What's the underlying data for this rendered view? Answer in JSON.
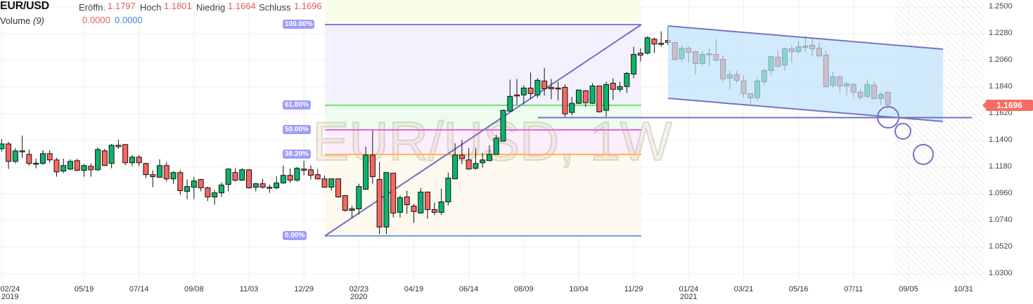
{
  "header": {
    "symbol": "EUR/USD",
    "open_label": "Eröffn.",
    "open_value": "1.1797",
    "high_label": "Hoch",
    "high_value": "1.1801",
    "low_label": "Niedrig",
    "low_value": "1.1664",
    "close_label": "Schluss",
    "close_value": "1.1696",
    "volume_label": "Volume",
    "volume_param": "(9)",
    "volume_value_1": "0.0000",
    "volume_value_2": "0.0000"
  },
  "watermark": "EUR/USD, 1W",
  "last_price": "1.1696",
  "fib_labels": [
    "100.00%",
    "61.80%",
    "50.00%",
    "38.20%",
    "0.00%"
  ],
  "colors": {
    "up": "#0bb56b",
    "down": "#f8665f",
    "channel": "#bfe2fb",
    "last_price": "#f86b63"
  },
  "chart_data": {
    "type": "candlestick",
    "interval": "1W",
    "ylim": [
      1.03,
      1.25
    ],
    "y_ticks": [
      "1.2500",
      "1.2280",
      "1.2060",
      "1.1840",
      "1.1620",
      "1.1400",
      "1.1180",
      "1.0960",
      "1.0740",
      "1.0520",
      "1.0300"
    ],
    "x_ticks": [
      {
        "label": "02/24",
        "year": "2019"
      },
      {
        "label": "05/19"
      },
      {
        "label": "07/14"
      },
      {
        "label": "09/08"
      },
      {
        "label": "11/03"
      },
      {
        "label": "12/29"
      },
      {
        "label": "02/23",
        "year": "2020"
      },
      {
        "label": "04/19"
      },
      {
        "label": "06/14"
      },
      {
        "label": "08/09"
      },
      {
        "label": "10/04"
      },
      {
        "label": "11/29"
      },
      {
        "label": "01/24",
        "year": "2021"
      },
      {
        "label": "03/21"
      },
      {
        "label": "05/16"
      },
      {
        "label": "07/11"
      },
      {
        "label": "09/05"
      },
      {
        "label": "10/31"
      }
    ],
    "ohlc": [
      [
        1.1331,
        1.1412,
        1.1308,
        1.1371
      ],
      [
        1.1371,
        1.1389,
        1.1164,
        1.1227
      ],
      [
        1.1227,
        1.1337,
        1.121,
        1.1314
      ],
      [
        1.1314,
        1.1441,
        1.1256,
        1.1308
      ],
      [
        1.1285,
        1.1325,
        1.1193,
        1.121
      ],
      [
        1.121,
        1.125,
        1.117,
        1.1212
      ],
      [
        1.121,
        1.132,
        1.1199,
        1.1291
      ],
      [
        1.1291,
        1.132,
        1.1216,
        1.1239
      ],
      [
        1.1239,
        1.1256,
        1.1101,
        1.1141
      ],
      [
        1.1147,
        1.125,
        1.113,
        1.1193
      ],
      [
        1.1164,
        1.1245,
        1.1153,
        1.1227
      ],
      [
        1.1233,
        1.125,
        1.1147,
        1.1153
      ],
      [
        1.1153,
        1.1204,
        1.1101,
        1.1193
      ],
      [
        1.1187,
        1.121,
        1.1101,
        1.1158
      ],
      [
        1.1158,
        1.1343,
        1.1147,
        1.1325
      ],
      [
        1.1314,
        1.1331,
        1.119,
        1.1193
      ],
      [
        1.121,
        1.1371,
        1.117,
        1.136
      ],
      [
        1.136,
        1.1406,
        1.1331,
        1.1348
      ],
      [
        1.1366,
        1.137,
        1.1193,
        1.1216
      ],
      [
        1.1216,
        1.1279,
        1.1187,
        1.1262
      ],
      [
        1.1262,
        1.1279,
        1.1187,
        1.1216
      ],
      [
        1.121,
        1.1216,
        1.1089,
        1.1118
      ],
      [
        1.1118,
        1.1153,
        1.1014,
        1.1101
      ],
      [
        1.1095,
        1.1245,
        1.1093,
        1.1193
      ],
      [
        1.1193,
        1.1222,
        1.106,
        1.1083
      ],
      [
        1.1083,
        1.1147,
        1.1043,
        1.1135
      ],
      [
        1.1135,
        1.1158,
        1.0951,
        1.0986
      ],
      [
        1.098,
        1.1078,
        1.0916,
        1.102
      ],
      [
        1.1014,
        1.1101,
        1.0916,
        1.1066
      ],
      [
        1.1078,
        1.1083,
        1.098,
        1.1009
      ],
      [
        1.1009,
        1.102,
        1.0899,
        1.0934
      ],
      [
        1.0934,
        1.0991,
        1.087,
        1.0968
      ],
      [
        1.0968,
        1.1055,
        1.0934,
        1.1032
      ],
      [
        1.1037,
        1.117,
        1.098,
        1.1164
      ],
      [
        1.1135,
        1.117,
        1.106,
        1.1072
      ],
      [
        1.1072,
        1.117,
        1.1066,
        1.1158
      ],
      [
        1.1158,
        1.1164,
        1.1003,
        1.1009
      ],
      [
        1.1014,
        1.1049,
        1.098,
        1.1043
      ],
      [
        1.1043,
        1.1083,
        1.1003,
        1.1014
      ],
      [
        1.1014,
        1.1037,
        1.0968,
        1.1009
      ],
      [
        1.1009,
        1.1106,
        1.0997,
        1.1049
      ],
      [
        1.1049,
        1.1193,
        1.1043,
        1.1112
      ],
      [
        1.1112,
        1.117,
        1.1049,
        1.1072
      ],
      [
        1.1072,
        1.1181,
        1.106,
        1.117
      ],
      [
        1.1164,
        1.1233,
        1.1112,
        1.1153
      ],
      [
        1.1158,
        1.1193,
        1.1078,
        1.1112
      ],
      [
        1.1118,
        1.1164,
        1.1078,
        1.1083
      ],
      [
        1.1083,
        1.1112,
        1.1009,
        1.1014
      ],
      [
        1.1014,
        1.1085,
        1.0986,
        1.1083
      ],
      [
        1.1083,
        1.1085,
        1.0928,
        1.0934
      ],
      [
        1.0945,
        1.0951,
        1.0813,
        1.0824
      ],
      [
        1.0824,
        1.0859,
        1.0761,
        1.0836
      ],
      [
        1.0836,
        1.1043,
        1.079,
        1.102
      ],
      [
        1.0997,
        1.1348,
        1.0997,
        1.1279
      ],
      [
        1.1279,
        1.1481,
        1.1043,
        1.1101
      ],
      [
        1.1078,
        1.1222,
        1.0628,
        1.0686
      ],
      [
        1.0686,
        1.1135,
        1.0628,
        1.1135
      ],
      [
        1.113,
        1.113,
        1.0766,
        1.0801
      ],
      [
        1.0807,
        1.0945,
        1.0766,
        1.0928
      ],
      [
        1.0934,
        1.0986,
        1.0795,
        1.087
      ],
      [
        1.0859,
        1.0876,
        1.072,
        1.0813
      ],
      [
        1.0801,
        1.1009,
        1.0801,
        1.0974
      ],
      [
        1.0974,
        1.0974,
        1.0755,
        1.083
      ],
      [
        1.083,
        1.0888,
        1.0784,
        1.0807
      ],
      [
        1.0807,
        1.1003,
        1.0784,
        1.0893
      ],
      [
        1.0893,
        1.1135,
        1.0864,
        1.1089
      ],
      [
        1.1083,
        1.1377,
        1.1083,
        1.1279
      ],
      [
        1.1279,
        1.1406,
        1.1204,
        1.125
      ],
      [
        1.1239,
        1.1337,
        1.1158,
        1.1164
      ],
      [
        1.117,
        1.1337,
        1.1158,
        1.121
      ],
      [
        1.1216,
        1.1297,
        1.1176,
        1.1239
      ],
      [
        1.1233,
        1.136,
        1.1233,
        1.1285
      ],
      [
        1.1285,
        1.1446,
        1.1285,
        1.1418
      ],
      [
        1.1394,
        1.1654,
        1.1394,
        1.1648
      ],
      [
        1.1642,
        1.1901,
        1.1636,
        1.1763
      ],
      [
        1.1775,
        1.1907,
        1.1694,
        1.1772
      ],
      [
        1.1775,
        1.1855,
        1.17,
        1.1832
      ],
      [
        1.1832,
        1.1959,
        1.174,
        1.1786
      ],
      [
        1.1775,
        1.1913,
        1.1752,
        1.1896
      ],
      [
        1.189,
        1.1999,
        1.1769,
        1.1826
      ],
      [
        1.1838,
        1.1907,
        1.174,
        1.1826
      ],
      [
        1.1832,
        1.1884,
        1.1729,
        1.1826
      ],
      [
        1.1838,
        1.1861,
        1.1596,
        1.1619
      ],
      [
        1.1631,
        1.1758,
        1.1608,
        1.1706
      ],
      [
        1.1706,
        1.1821,
        1.17,
        1.1815
      ],
      [
        1.1809,
        1.1815,
        1.1677,
        1.1711
      ],
      [
        1.1706,
        1.1872,
        1.17,
        1.1849
      ],
      [
        1.1849,
        1.1849,
        1.1631,
        1.1636
      ],
      [
        1.1648,
        1.1884,
        1.1596,
        1.1861
      ],
      [
        1.1872,
        1.1913,
        1.1734,
        1.1821
      ],
      [
        1.1821,
        1.1884,
        1.1798,
        1.1844
      ],
      [
        1.1844,
        1.1965,
        1.1792,
        1.1953
      ],
      [
        1.1947,
        1.2172,
        1.1913,
        1.2109
      ],
      [
        1.212,
        1.2161,
        1.2051,
        1.2103
      ],
      [
        1.212,
        1.2258,
        1.2109,
        1.2247
      ],
      [
        1.2235,
        1.2247,
        1.212,
        1.2195
      ],
      [
        1.2201,
        1.2299,
        1.2172,
        1.2195
      ],
      [
        1.2224,
        1.2339,
        1.2184,
        1.2207
      ],
      [
        1.2207,
        1.2218,
        1.2057,
        1.2068
      ],
      [
        1.2074,
        1.2184,
        1.2045,
        1.216
      ],
      [
        1.216,
        1.2178,
        1.2045,
        1.2126
      ],
      [
        1.2132,
        1.2138,
        1.1942,
        1.2034
      ],
      [
        1.2034,
        1.2138,
        1.2011,
        1.2109
      ],
      [
        1.2115,
        1.2161,
        1.2017,
        1.2109
      ],
      [
        1.2109,
        1.2235,
        1.2051,
        1.2063
      ],
      [
        1.2068,
        1.2103,
        1.1878,
        1.1907
      ],
      [
        1.1913,
        1.1976,
        1.1821,
        1.1942
      ],
      [
        1.1942,
        1.1976,
        1.1872,
        1.1896
      ],
      [
        1.189,
        1.1936,
        1.1752,
        1.1786
      ],
      [
        1.1786,
        1.1786,
        1.17,
        1.1752
      ],
      [
        1.1752,
        1.1919,
        1.1729,
        1.189
      ],
      [
        1.1884,
        1.1988,
        1.1855,
        1.1976
      ],
      [
        1.1976,
        1.2091,
        1.1936,
        1.2091
      ],
      [
        1.2086,
        1.2143,
        1.2005,
        1.2011
      ],
      [
        1.2022,
        1.2166,
        1.1976,
        1.2155
      ],
      [
        1.2155,
        1.2184,
        1.204,
        1.2132
      ],
      [
        1.2132,
        1.2218,
        1.2115,
        1.2172
      ],
      [
        1.2166,
        1.2258,
        1.2126,
        1.2178
      ],
      [
        1.2184,
        1.2247,
        1.2097,
        1.2155
      ],
      [
        1.2161,
        1.2212,
        1.2086,
        1.2097
      ],
      [
        1.2103,
        1.2138,
        1.1838,
        1.1844
      ],
      [
        1.1855,
        1.1965,
        1.1838,
        1.1924
      ],
      [
        1.1924,
        1.1936,
        1.1792,
        1.1849
      ],
      [
        1.1849,
        1.1884,
        1.1769,
        1.1867
      ],
      [
        1.1861,
        1.1872,
        1.1757,
        1.1798
      ],
      [
        1.1798,
        1.1821,
        1.1734,
        1.1757
      ],
      [
        1.1763,
        1.1901,
        1.1746,
        1.1861
      ],
      [
        1.1855,
        1.189,
        1.174,
        1.1746
      ],
      [
        1.1746,
        1.1798,
        1.1694,
        1.178
      ],
      [
        1.1797,
        1.1801,
        1.1664,
        1.1696
      ]
    ]
  }
}
